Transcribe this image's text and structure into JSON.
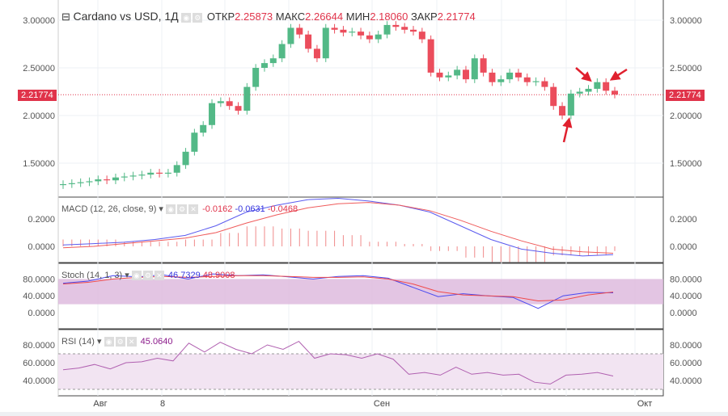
{
  "header": {
    "title": "Cardano vs USD, 1Д",
    "open_label": "ОТКР",
    "open": "2.25873",
    "high_label": "МАКС",
    "high": "2.26644",
    "low_label": "МИН",
    "low": "2.18060",
    "close_label": "ЗАКР",
    "close": "2.21774"
  },
  "macd": {
    "title": "MACD (12, 26, close, 9)",
    "hist": "-0.0162",
    "macd": "-0.0631",
    "signal": "-0.0468"
  },
  "stoch": {
    "title": "Stoch (14, 1, 3)",
    "k": "46.7329",
    "d": "48.9008"
  },
  "rsi": {
    "title": "RSI (14)",
    "value": "45.0640"
  },
  "price_ticks": [
    "3.00000",
    "2.50000",
    "2.00000",
    "1.50000"
  ],
  "current_price": "2.21774",
  "macd_ticks": [
    "0.2000",
    "0.0000"
  ],
  "osc_ticks": [
    "80.0000",
    "40.0000",
    "0.0000"
  ],
  "rsi_ticks": [
    "80.0000",
    "60.0000",
    "40.0000"
  ],
  "time_labels": [
    "Авг",
    "8",
    "Сен",
    "Окт"
  ],
  "colors": {
    "up": "#53b987",
    "down": "#eb4d5c",
    "accent": "#e0334a"
  },
  "chart_data": {
    "type": "candlestick",
    "closes": [
      1.28,
      1.29,
      1.3,
      1.31,
      1.33,
      1.32,
      1.35,
      1.36,
      1.37,
      1.38,
      1.4,
      1.39,
      1.4,
      1.48,
      1.62,
      1.82,
      1.9,
      2.13,
      2.15,
      2.1,
      2.05,
      2.3,
      2.5,
      2.55,
      2.6,
      2.75,
      2.92,
      2.85,
      2.7,
      2.6,
      2.92,
      2.9,
      2.87,
      2.88,
      2.84,
      2.8,
      2.85,
      2.95,
      2.93,
      2.9,
      2.88,
      2.8,
      2.45,
      2.4,
      2.42,
      2.48,
      2.38,
      2.6,
      2.45,
      2.35,
      2.38,
      2.45,
      2.4,
      2.35,
      2.36,
      2.3,
      2.1,
      2.0,
      2.23,
      2.25,
      2.28,
      2.35,
      2.26,
      2.22
    ],
    "macd_line": [
      0.01,
      0.02,
      0.03,
      0.05,
      0.08,
      0.15,
      0.25,
      0.3,
      0.34,
      0.35,
      0.33,
      0.3,
      0.25,
      0.15,
      0.05,
      -0.02,
      -0.05,
      -0.07,
      -0.06
    ],
    "signal_line": [
      -0.01,
      0.0,
      0.02,
      0.04,
      0.06,
      0.1,
      0.17,
      0.23,
      0.28,
      0.31,
      0.32,
      0.3,
      0.26,
      0.19,
      0.11,
      0.04,
      -0.02,
      -0.04,
      -0.05
    ],
    "stoch_k": [
      70,
      75,
      88,
      85,
      90,
      80,
      92,
      88,
      90,
      85,
      80,
      86,
      88,
      82,
      60,
      38,
      45,
      40,
      36,
      10,
      40,
      48,
      47
    ],
    "stoch_d": [
      68,
      72,
      80,
      84,
      86,
      84,
      86,
      88,
      88,
      86,
      84,
      84,
      85,
      80,
      68,
      50,
      42,
      40,
      38,
      28,
      30,
      42,
      49
    ],
    "rsi": [
      52,
      54,
      58,
      53,
      60,
      61,
      65,
      62,
      82,
      72,
      83,
      75,
      70,
      80,
      75,
      84,
      65,
      70,
      69,
      65,
      70,
      64,
      47,
      49,
      46,
      55,
      47,
      49,
      46,
      47,
      38,
      36,
      46,
      47,
      49,
      45
    ]
  }
}
